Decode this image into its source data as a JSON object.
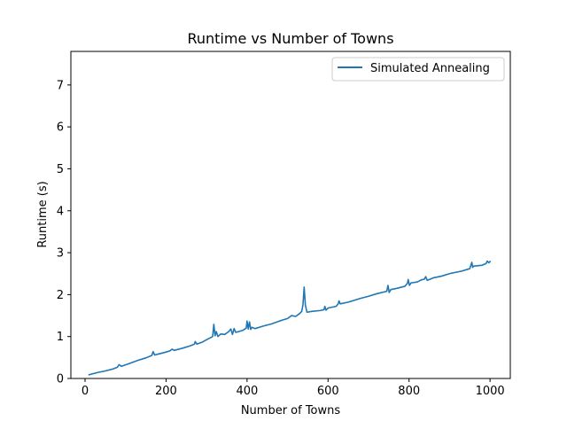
{
  "chart_data": {
    "type": "line",
    "title": "Runtime vs Number of Towns",
    "xlabel": "Number of Towns",
    "ylabel": "Runtime (s)",
    "xlim": [
      -35,
      1050
    ],
    "ylim": [
      0,
      7.8
    ],
    "xticks": [
      0,
      200,
      400,
      600,
      800,
      1000
    ],
    "yticks": [
      0,
      1,
      2,
      3,
      4,
      5,
      6,
      7
    ],
    "grid": false,
    "legend_position": "top-right",
    "series": [
      {
        "name": "Simulated Annealing",
        "color": "#1f77b4",
        "x": [
          10,
          30,
          50,
          70,
          80,
          84,
          90,
          110,
          130,
          150,
          165,
          168,
          172,
          180,
          200,
          210,
          215,
          220,
          240,
          260,
          270,
          272,
          276,
          290,
          305,
          315,
          318,
          321,
          324,
          328,
          335,
          345,
          355,
          360,
          364,
          368,
          372,
          380,
          390,
          398,
          400,
          403,
          406,
          409,
          412,
          420,
          440,
          460,
          480,
          490,
          500,
          510,
          520,
          530,
          535,
          538,
          541,
          544,
          548,
          560,
          580,
          590,
          592,
          595,
          600,
          620,
          625,
          627,
          630,
          650,
          680,
          700,
          720,
          745,
          748,
          751,
          755,
          770,
          790,
          796,
          798,
          801,
          805,
          820,
          830,
          838,
          841,
          845,
          860,
          880,
          900,
          930,
          950,
          955,
          957,
          960,
          980,
          990,
          993,
          997,
          1000
        ],
        "y": [
          0.09,
          0.14,
          0.18,
          0.23,
          0.27,
          0.33,
          0.29,
          0.36,
          0.43,
          0.49,
          0.55,
          0.64,
          0.56,
          0.58,
          0.63,
          0.66,
          0.7,
          0.67,
          0.72,
          0.78,
          0.82,
          0.88,
          0.82,
          0.87,
          0.95,
          1.0,
          1.29,
          1.02,
          1.12,
          1.0,
          1.06,
          1.05,
          1.12,
          1.18,
          1.05,
          1.19,
          1.1,
          1.12,
          1.15,
          1.2,
          1.37,
          1.18,
          1.35,
          1.17,
          1.22,
          1.19,
          1.25,
          1.3,
          1.37,
          1.4,
          1.43,
          1.5,
          1.48,
          1.55,
          1.6,
          1.75,
          2.18,
          1.75,
          1.58,
          1.6,
          1.62,
          1.64,
          1.72,
          1.63,
          1.68,
          1.72,
          1.78,
          1.85,
          1.78,
          1.82,
          1.91,
          1.96,
          2.02,
          2.08,
          2.22,
          2.05,
          2.12,
          2.15,
          2.2,
          2.27,
          2.36,
          2.22,
          2.28,
          2.3,
          2.35,
          2.37,
          2.43,
          2.34,
          2.4,
          2.44,
          2.5,
          2.56,
          2.62,
          2.77,
          2.65,
          2.68,
          2.7,
          2.74,
          2.8,
          2.76,
          2.79
        ]
      }
    ]
  }
}
